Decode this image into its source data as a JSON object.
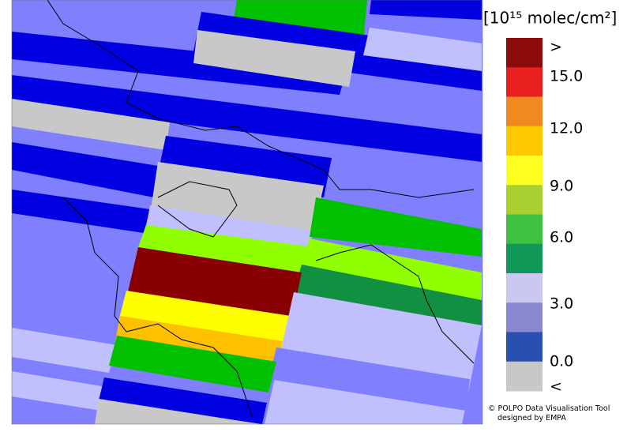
{
  "legend": {
    "title": "[10¹⁵ molec/cm²]",
    "colors": [
      "#8b0a0a",
      "#e82020",
      "#f08a20",
      "#ffc800",
      "#ffff20",
      "#a8d030",
      "#40c040",
      "#109858",
      "#c8c8f0",
      "#8888d0",
      "#2850b0",
      "#c8c8c8"
    ],
    "labels": [
      ">",
      "15.0",
      "12.0",
      "9.0",
      "6.0",
      "3.0",
      "0.0",
      "<"
    ]
  },
  "credit": {
    "line1": "© POLPO Data Visualisation Tool",
    "line2": "designed by EMPA"
  }
}
